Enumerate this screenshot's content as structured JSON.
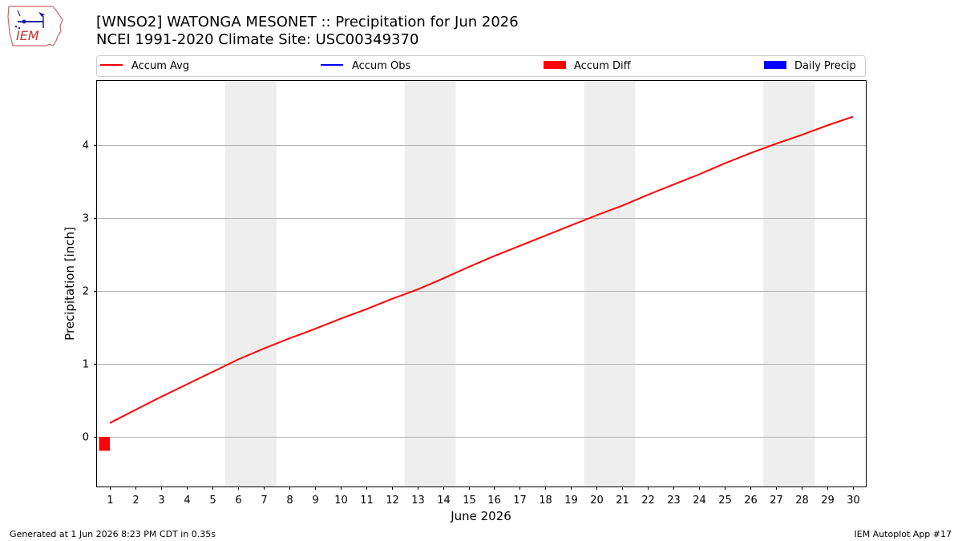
{
  "header": {
    "title_line1": "[WNSO2] WATONGA MESONET :: Precipitation for Jun 2026",
    "title_line2": "NCEI 1991-2020 Climate Site: USC00349370"
  },
  "logo": {
    "text": "IEM",
    "icon": "iem-iowa-logo"
  },
  "footer": {
    "generated": "Generated at 1 Jun 2026 8:23 PM CDT in 0.35s",
    "app": "IEM Autoplot App #17"
  },
  "colors": {
    "accum_avg": "#ff0000",
    "accum_obs": "#0000ff",
    "accum_diff": "#ff0000",
    "daily_precip": "#0000ff",
    "weekend_shade": "#eeeeee",
    "grid": "#b0b0b0"
  },
  "chart_data": {
    "type": "line",
    "xlabel": "June 2026",
    "ylabel": "Precipitation [inch]",
    "xlim": [
      0.5,
      30.5
    ],
    "ylim": [
      -0.68,
      4.88
    ],
    "x_ticks": [
      1,
      2,
      3,
      4,
      5,
      6,
      7,
      8,
      9,
      10,
      11,
      12,
      13,
      14,
      15,
      16,
      17,
      18,
      19,
      20,
      21,
      22,
      23,
      24,
      25,
      26,
      27,
      28,
      29,
      30
    ],
    "y_ticks": [
      0,
      1,
      2,
      3,
      4
    ],
    "grid": "horizontal",
    "legend_position": "top, above plot",
    "legend": [
      {
        "label": "Accum Avg",
        "kind": "line",
        "color": "#ff0000"
      },
      {
        "label": "Accum Obs",
        "kind": "line",
        "color": "#0000ff"
      },
      {
        "label": "Accum Diff",
        "kind": "bar",
        "color": "#ff0000"
      },
      {
        "label": "Daily Precip",
        "kind": "bar",
        "color": "#0000ff"
      }
    ],
    "weekend_spans": [
      [
        5.5,
        7.5
      ],
      [
        12.5,
        14.5
      ],
      [
        19.5,
        21.5
      ],
      [
        26.5,
        28.5
      ]
    ],
    "series": [
      {
        "name": "Accum Avg",
        "type": "line",
        "x": [
          1,
          2,
          3,
          4,
          5,
          6,
          7,
          8,
          9,
          10,
          11,
          12,
          13,
          14,
          15,
          16,
          17,
          18,
          19,
          20,
          21,
          22,
          23,
          24,
          25,
          26,
          27,
          28,
          29,
          30
        ],
        "values": [
          0.19,
          0.37,
          0.55,
          0.72,
          0.89,
          1.06,
          1.21,
          1.35,
          1.48,
          1.62,
          1.75,
          1.89,
          2.02,
          2.17,
          2.33,
          2.48,
          2.62,
          2.76,
          2.9,
          3.04,
          3.17,
          3.32,
          3.46,
          3.6,
          3.75,
          3.89,
          4.02,
          4.14,
          4.27,
          4.39
        ]
      },
      {
        "name": "Accum Diff",
        "type": "bar",
        "x": [
          1
        ],
        "values": [
          -0.19
        ]
      }
    ]
  }
}
